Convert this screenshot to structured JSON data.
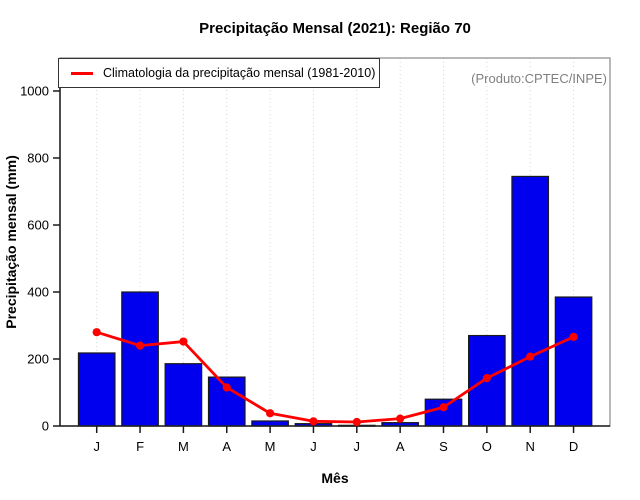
{
  "chart_data": {
    "type": "bar",
    "title": "Precipitação Mensal (2021): Região 70",
    "xlabel": "Mês",
    "ylabel": "Precipitação mensal (mm)",
    "categories": [
      "J",
      "F",
      "M",
      "A",
      "M",
      "J",
      "J",
      "A",
      "S",
      "O",
      "N",
      "D"
    ],
    "yticks": [
      0,
      200,
      400,
      600,
      800,
      1000
    ],
    "ylim": [
      0,
      1100
    ],
    "grid": "vertical-dotted-at-month-centers",
    "legend_label": "Climatologia da precipitação mensal (1981-2010)",
    "legend_position": "top-left",
    "annotation": "(Produto:CPTEC/INPE)",
    "series": [
      {
        "name": "Precipitação mensal 2021",
        "type": "bar",
        "values": [
          218,
          400,
          186,
          146,
          15,
          7,
          2,
          10,
          80,
          270,
          745,
          385
        ]
      },
      {
        "name": "Climatologia da precipitação mensal (1981-2010)",
        "type": "line",
        "values": [
          280,
          240,
          252,
          115,
          38,
          14,
          12,
          22,
          56,
          143,
          207,
          266
        ]
      }
    ],
    "colors": {
      "bar_fill": "#0000EE",
      "bar_border": "#1a1a1a",
      "line": "#FF0000",
      "grid": "#d4d4d4",
      "box": "#8a8a8a",
      "axis": "#1a1a1a",
      "annotation": "#808080"
    }
  }
}
